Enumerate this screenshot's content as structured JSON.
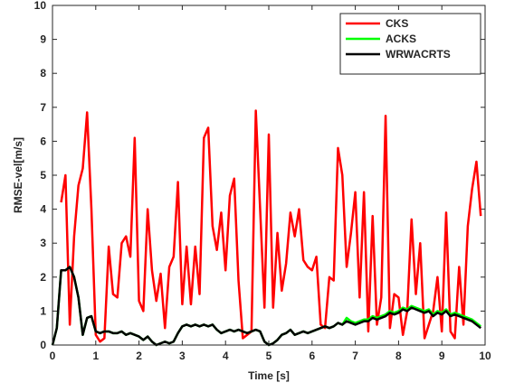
{
  "chart_data": {
    "type": "line",
    "xlabel": "Time [s]",
    "ylabel": "RMSE-vel[m/s]",
    "x": [
      0,
      0.1,
      0.2,
      0.3,
      0.4,
      0.5,
      0.6,
      0.7,
      0.8,
      0.9,
      1,
      1.1,
      1.2,
      1.3,
      1.4,
      1.5,
      1.6,
      1.7,
      1.8,
      1.9,
      2,
      2.1,
      2.2,
      2.3,
      2.4,
      2.5,
      2.6,
      2.7,
      2.8,
      2.9,
      3,
      3.1,
      3.2,
      3.3,
      3.4,
      3.5,
      3.6,
      3.7,
      3.8,
      3.9,
      4,
      4.1,
      4.2,
      4.3,
      4.4,
      4.5,
      4.6,
      4.7,
      4.8,
      4.9,
      5,
      5.1,
      5.2,
      5.3,
      5.4,
      5.5,
      5.6,
      5.7,
      5.8,
      5.9,
      6,
      6.1,
      6.2,
      6.3,
      6.4,
      6.5,
      6.6,
      6.7,
      6.8,
      6.9,
      7,
      7.1,
      7.2,
      7.3,
      7.4,
      7.5,
      7.6,
      7.7,
      7.8,
      7.9,
      8,
      8.1,
      8.2,
      8.3,
      8.4,
      8.5,
      8.6,
      8.7,
      8.8,
      8.9,
      9,
      9.1,
      9.2,
      9.3,
      9.4,
      9.5,
      9.6,
      9.7,
      9.8,
      9.9
    ],
    "series": [
      {
        "name": "CKS",
        "color": "#ff0000",
        "values": [
          null,
          null,
          4.2,
          5.0,
          0.6,
          3.2,
          4.7,
          5.2,
          6.85,
          4.0,
          0.3,
          0.1,
          0.2,
          2.9,
          1.5,
          1.4,
          3.0,
          3.2,
          2.6,
          6.1,
          1.3,
          1.0,
          4.0,
          2.2,
          1.3,
          2.1,
          0.5,
          2.3,
          2.6,
          4.8,
          1.2,
          2.9,
          1.2,
          2.9,
          1.5,
          6.1,
          6.4,
          3.5,
          2.8,
          3.9,
          2.2,
          4.4,
          4.9,
          1.9,
          0.2,
          0.3,
          0.4,
          6.9,
          4.0,
          1.1,
          6.2,
          1.1,
          3.3,
          1.6,
          2.4,
          3.9,
          3.2,
          4.0,
          2.5,
          2.3,
          2.2,
          2.6,
          0.6,
          0.5,
          2.0,
          1.9,
          5.8,
          5.0,
          2.3,
          3.3,
          4.5,
          1.4,
          4.5,
          0.4,
          3.8,
          0.6,
          1.4,
          6.75,
          0.5,
          1.5,
          1.4,
          0.3,
          1.0,
          3.7,
          1.5,
          3.0,
          0.2,
          0.6,
          1.0,
          2.0,
          0.4,
          3.9,
          0.4,
          0.2,
          2.3,
          0.6,
          3.5,
          4.6,
          5.4,
          3.8
        ]
      },
      {
        "name": "ACKS",
        "color": "#00ff00",
        "values": [
          0,
          0.5,
          2.2,
          2.2,
          2.3,
          2.0,
          1.4,
          0.3,
          0.8,
          0.85,
          0.4,
          0.35,
          0.4,
          0.4,
          0.35,
          0.35,
          0.4,
          0.3,
          0.35,
          0.3,
          0.25,
          0.15,
          0.25,
          0.1,
          0.0,
          0.05,
          0.1,
          0.05,
          0.1,
          0.35,
          0.55,
          0.6,
          0.55,
          0.6,
          0.55,
          0.6,
          0.55,
          0.6,
          0.45,
          0.35,
          0.4,
          0.45,
          0.4,
          0.45,
          0.4,
          0.35,
          0.4,
          0.45,
          0.4,
          0.1,
          0.0,
          0.05,
          0.15,
          0.3,
          0.35,
          0.45,
          0.3,
          0.35,
          0.4,
          0.35,
          0.4,
          0.45,
          0.5,
          0.55,
          0.5,
          0.55,
          0.65,
          0.6,
          0.8,
          0.7,
          0.65,
          0.7,
          0.75,
          0.75,
          0.85,
          0.8,
          0.85,
          0.9,
          1.0,
          0.95,
          1.0,
          1.1,
          1.05,
          1.15,
          1.1,
          1.05,
          1.0,
          1.05,
          0.9,
          1.0,
          0.95,
          1.05,
          0.9,
          0.95,
          0.9,
          0.85,
          0.8,
          0.75,
          0.65,
          0.55
        ]
      },
      {
        "name": "WRWACRTS",
        "color": "#000000",
        "values": [
          0,
          0.5,
          2.2,
          2.2,
          2.3,
          2.0,
          1.4,
          0.3,
          0.8,
          0.85,
          0.4,
          0.35,
          0.4,
          0.4,
          0.35,
          0.35,
          0.4,
          0.3,
          0.35,
          0.3,
          0.25,
          0.15,
          0.25,
          0.1,
          0.0,
          0.05,
          0.1,
          0.05,
          0.1,
          0.35,
          0.55,
          0.6,
          0.55,
          0.6,
          0.55,
          0.6,
          0.55,
          0.6,
          0.45,
          0.35,
          0.4,
          0.45,
          0.4,
          0.45,
          0.4,
          0.35,
          0.4,
          0.45,
          0.4,
          0.1,
          0.0,
          0.05,
          0.15,
          0.3,
          0.35,
          0.45,
          0.3,
          0.35,
          0.4,
          0.35,
          0.4,
          0.45,
          0.5,
          0.55,
          0.5,
          0.55,
          0.65,
          0.6,
          0.7,
          0.65,
          0.6,
          0.65,
          0.7,
          0.7,
          0.8,
          0.75,
          0.8,
          0.85,
          0.95,
          0.9,
          0.95,
          1.05,
          1.0,
          1.1,
          1.05,
          1.0,
          0.95,
          1.0,
          0.85,
          0.95,
          0.9,
          1.0,
          0.85,
          0.9,
          0.85,
          0.8,
          0.75,
          0.7,
          0.6,
          0.5
        ]
      }
    ],
    "xlim": [
      0,
      10
    ],
    "xticks": [
      0,
      1,
      2,
      3,
      4,
      5,
      6,
      7,
      8,
      9,
      10
    ],
    "ylim": [
      0,
      10
    ],
    "yticks": [
      0,
      1,
      2,
      3,
      4,
      5,
      6,
      7,
      8,
      9,
      10
    ],
    "legend": "top-right"
  }
}
